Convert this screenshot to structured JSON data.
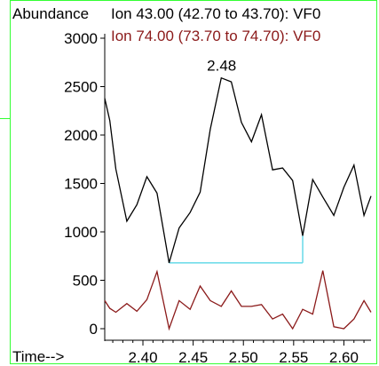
{
  "chart_data": {
    "type": "line",
    "ylabel": "Abundance",
    "xlabel": "Time-->",
    "xlim": [
      2.362,
      2.627
    ],
    "ylim": [
      -30,
      3100
    ],
    "x_ticks": [
      "2.40",
      "2.45",
      "2.50",
      "2.55",
      "2.60"
    ],
    "y_ticks": [
      "0",
      "500",
      "1000",
      "1500",
      "2000",
      "2500",
      "3000"
    ],
    "series": [
      {
        "name": "Ion  43.00 (42.70 to 43.70): VF0",
        "color": "#000000",
        "x": [
          2.362,
          2.367,
          2.373,
          2.384,
          2.394,
          2.404,
          2.414,
          2.426,
          2.436,
          2.447,
          2.457,
          2.467,
          2.478,
          2.488,
          2.498,
          2.508,
          2.518,
          2.529,
          2.539,
          2.549,
          2.559,
          2.569,
          2.579,
          2.59,
          2.6,
          2.61,
          2.62,
          2.627
        ],
        "values": [
          2380,
          2150,
          1650,
          1110,
          1280,
          1570,
          1400,
          680,
          1040,
          1200,
          1410,
          2060,
          2590,
          2550,
          2130,
          1930,
          2210,
          1640,
          1660,
          1530,
          960,
          1540,
          1360,
          1170,
          1460,
          1690,
          1170,
          1370
        ]
      },
      {
        "name": "Ion  74.00 (73.70 to 74.70): VF0",
        "color": "#8b1a1a",
        "x": [
          2.362,
          2.367,
          2.373,
          2.384,
          2.394,
          2.404,
          2.414,
          2.426,
          2.436,
          2.447,
          2.457,
          2.467,
          2.478,
          2.488,
          2.498,
          2.508,
          2.518,
          2.529,
          2.539,
          2.549,
          2.559,
          2.569,
          2.579,
          2.59,
          2.6,
          2.61,
          2.62,
          2.627
        ],
        "values": [
          290,
          210,
          170,
          260,
          180,
          300,
          590,
          0,
          290,
          200,
          440,
          290,
          230,
          390,
          230,
          230,
          250,
          100,
          150,
          0,
          200,
          150,
          600,
          20,
          0,
          100,
          290,
          170
        ]
      }
    ],
    "baseline": {
      "color": "#66d9e8",
      "x_start": 2.426,
      "x_end": 2.559,
      "y": 680
    },
    "annotations": [
      {
        "text": "2.48",
        "x": 2.481,
        "y": 2590
      }
    ],
    "grid": false,
    "legend": "top"
  }
}
